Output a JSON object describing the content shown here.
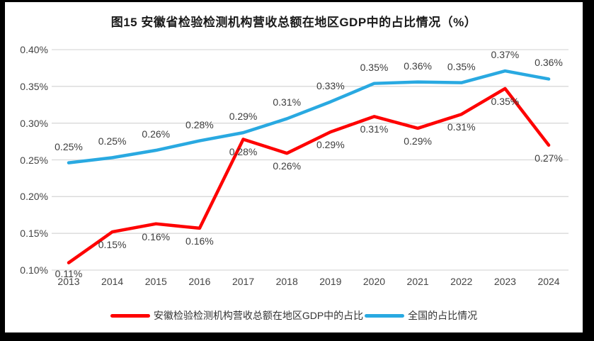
{
  "figure": {
    "title": "图15 安徽省检验检测机构营收总额在地区GDP中的占比情况（%）"
  },
  "chart_data": {
    "type": "line",
    "title": "图15 安徽省检验检测机构营收总额在地区GDP中的占比情况（%）",
    "categories": [
      "2013",
      "2014",
      "2015",
      "2016",
      "2017",
      "2018",
      "2019",
      "2020",
      "2021",
      "2022",
      "2023",
      "2024"
    ],
    "series": [
      {
        "name": "安徽检验检测机构营收总额在地区GDP中的占比",
        "color": "#fe0000",
        "values": [
          0.11,
          0.15,
          0.16,
          0.16,
          0.28,
          0.26,
          0.29,
          0.31,
          0.29,
          0.31,
          0.35,
          0.27
        ],
        "labels": [
          "0.11%",
          "0.15%",
          "0.16%",
          "0.16%",
          "0.28%",
          "0.26%",
          "0.29%",
          "0.31%",
          "0.29%",
          "0.31%",
          "0.35%",
          "0.27%"
        ],
        "plot_values": [
          0.11,
          0.152,
          0.163,
          0.157,
          0.278,
          0.259,
          0.288,
          0.309,
          0.293,
          0.312,
          0.347,
          0.27
        ],
        "label_position": "below"
      },
      {
        "name": "全国的占比情况",
        "color": "#29a9e1",
        "values": [
          0.25,
          0.25,
          0.26,
          0.28,
          0.29,
          0.31,
          0.33,
          0.35,
          0.36,
          0.35,
          0.37,
          0.36
        ],
        "labels": [
          "0.25%",
          "0.25%",
          "0.26%",
          "0.28%",
          "0.29%",
          "0.31%",
          "0.33%",
          "0.35%",
          "0.36%",
          "0.35%",
          "0.37%",
          "0.36%"
        ],
        "plot_values": [
          0.246,
          0.253,
          0.263,
          0.276,
          0.287,
          0.306,
          0.329,
          0.354,
          0.356,
          0.355,
          0.371,
          0.36
        ],
        "label_position": "above"
      }
    ],
    "xlabel": "",
    "ylabel": "",
    "ylim": [
      0.1,
      0.4
    ],
    "ytick_step": 0.05,
    "ytick_labels": [
      "0.10%",
      "0.15%",
      "0.20%",
      "0.25%",
      "0.30%",
      "0.35%",
      "0.40%"
    ],
    "grid": "horizontal",
    "gridline_color": "#d9d9d9",
    "legend_position": "bottom",
    "data_labels_visible": true,
    "background_color": "#ffffff",
    "frame_color": "#000000"
  }
}
